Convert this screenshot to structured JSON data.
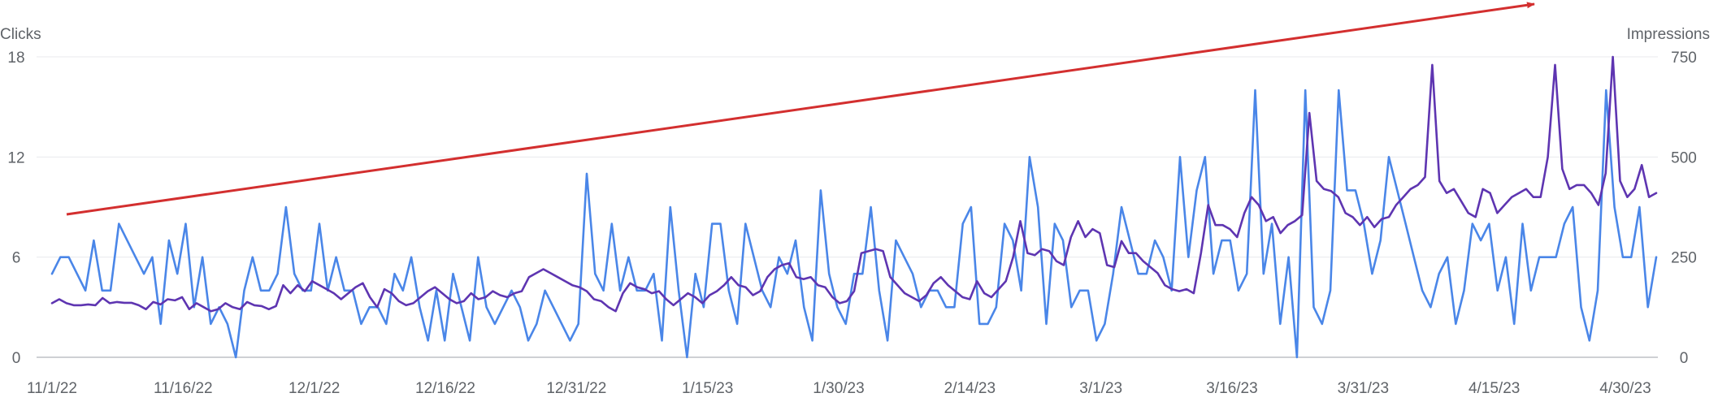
{
  "chart_data": {
    "type": "line",
    "left_axis": {
      "label": "Clicks",
      "ticks": [
        "18",
        "12",
        "6",
        "0"
      ],
      "range": [
        0,
        18
      ]
    },
    "right_axis": {
      "label": "Impressions",
      "ticks": [
        "750",
        "500",
        "250",
        "0"
      ],
      "range": [
        0,
        750
      ]
    },
    "x_ticks": [
      "11/1/22",
      "11/16/22",
      "12/1/22",
      "12/16/22",
      "12/31/22",
      "1/15/23",
      "1/30/23",
      "2/14/23",
      "3/1/23",
      "3/16/23",
      "3/31/23",
      "4/15/23",
      "4/30/23"
    ],
    "x_range": [
      "2022-11-01",
      "2023-04-30"
    ],
    "grid": true,
    "series": [
      {
        "axis": "left",
        "color": "#4a86e8",
        "values": [
          5,
          6,
          6,
          5,
          4,
          7,
          4,
          4,
          8,
          7,
          6,
          5,
          6,
          2,
          7,
          5,
          8,
          3,
          6,
          2,
          3,
          2,
          0,
          4,
          6,
          4,
          4,
          5,
          9,
          5,
          4,
          4,
          8,
          4,
          6,
          4,
          4,
          2,
          3,
          3,
          2,
          5,
          4,
          6,
          3,
          1,
          4,
          1,
          5,
          3,
          1,
          6,
          3,
          2,
          3,
          4,
          3,
          1,
          2,
          4,
          3,
          2,
          1,
          2,
          11,
          5,
          4,
          8,
          4,
          6,
          4,
          4,
          5,
          1,
          9,
          4,
          0,
          5,
          3,
          8,
          8,
          4,
          2,
          8,
          6,
          4,
          3,
          6,
          5,
          7,
          3,
          1,
          10,
          5,
          3,
          2,
          5,
          5,
          9,
          4,
          1,
          7,
          6,
          5,
          3,
          4,
          4,
          3,
          3,
          8,
          9,
          2,
          2,
          3,
          8,
          7,
          4,
          12,
          9,
          2,
          8,
          7,
          3,
          4,
          4,
          1,
          2,
          5,
          9,
          7,
          5,
          5,
          7,
          6,
          4,
          12,
          6,
          10,
          12,
          5,
          7,
          7,
          4,
          5,
          16,
          5,
          8,
          2,
          6,
          0,
          16,
          3,
          2,
          4,
          16,
          10,
          10,
          8,
          5,
          7,
          12,
          10,
          8,
          6,
          4,
          3,
          5,
          6,
          2,
          4,
          8,
          7,
          8,
          4,
          6,
          2,
          8,
          4,
          6,
          6,
          6,
          8,
          9,
          3,
          1,
          4,
          16,
          9,
          6,
          6,
          9,
          3,
          6
        ],
        "values_note_type": "daily estimates"
      },
      {
        "axis": "right",
        "color": "#5e35b1",
        "values": [
          135,
          145,
          135,
          130,
          130,
          132,
          130,
          148,
          135,
          138,
          136,
          136,
          130,
          120,
          138,
          132,
          145,
          142,
          150,
          120,
          135,
          125,
          115,
          120,
          135,
          125,
          120,
          138,
          130,
          128,
          120,
          128,
          180,
          160,
          180,
          165,
          190,
          180,
          170,
          160,
          145,
          160,
          175,
          185,
          150,
          125,
          170,
          160,
          140,
          130,
          135,
          150,
          165,
          175,
          160,
          145,
          135,
          140,
          160,
          145,
          150,
          165,
          155,
          150,
          160,
          165,
          200,
          210,
          220,
          210,
          200,
          190,
          180,
          175,
          165,
          145,
          140,
          125,
          115,
          160,
          185,
          175,
          170,
          160,
          165,
          145,
          130,
          145,
          160,
          150,
          135,
          155,
          165,
          180,
          200,
          180,
          175,
          155,
          165,
          200,
          220,
          230,
          235,
          200,
          195,
          200,
          180,
          175,
          150,
          135,
          140,
          165,
          260,
          265,
          270,
          265,
          200,
          180,
          160,
          150,
          140,
          155,
          185,
          200,
          180,
          165,
          150,
          145,
          190,
          160,
          150,
          170,
          190,
          250,
          340,
          260,
          255,
          270,
          265,
          240,
          230,
          300,
          340,
          300,
          320,
          310,
          230,
          225,
          290,
          260,
          260,
          240,
          225,
          210,
          180,
          170,
          165,
          170,
          160,
          260,
          380,
          330,
          330,
          320,
          300,
          360,
          400,
          380,
          340,
          350,
          310,
          330,
          340,
          355,
          610,
          440,
          420,
          415,
          400,
          360,
          350,
          330,
          350,
          325,
          345,
          350,
          380,
          400,
          420,
          430,
          450,
          730,
          440,
          410,
          420,
          390,
          360,
          350,
          420,
          410,
          360,
          380,
          400,
          410,
          420,
          400,
          400,
          500,
          730,
          470,
          420,
          430,
          430,
          410,
          380,
          460,
          750,
          440,
          400,
          420,
          480,
          400,
          410
        ],
        "values_note_type": "daily estimates"
      }
    ]
  },
  "annotation": {
    "type": "trend-arrow",
    "color": "#d32f2f"
  }
}
